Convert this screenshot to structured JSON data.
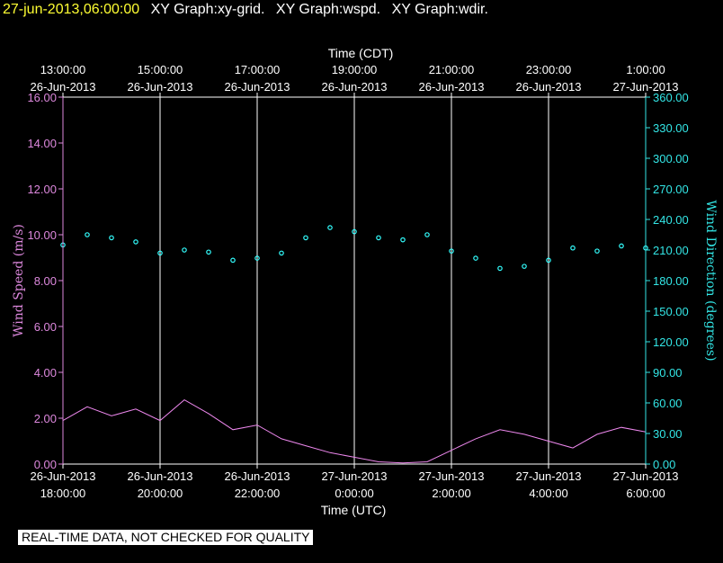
{
  "header": {
    "timestamp": "27-jun-2013,06:00:00",
    "graph_titles": [
      "XY Graph:xy-grid.",
      "XY Graph:wspd.",
      "XY Graph:wdir."
    ]
  },
  "disclaimer": "REAL-TIME DATA, NOT CHECKED FOR QUALITY",
  "colors": {
    "background": "#000000",
    "frame": "#ffffff",
    "left_axis": "#dd88dd",
    "right_axis": "#33e6e6",
    "wind_speed": "#ee88ee",
    "wind_direction": "#33ffff",
    "header_timestamp": "#ffff33"
  },
  "chart_data": {
    "type": "line",
    "top_axis": {
      "label": "Time (CDT)",
      "ticks": [
        {
          "time": "13:00:00",
          "date": "26-Jun-2013"
        },
        {
          "time": "15:00:00",
          "date": "26-Jun-2013"
        },
        {
          "time": "17:00:00",
          "date": "26-Jun-2013"
        },
        {
          "time": "19:00:00",
          "date": "26-Jun-2013"
        },
        {
          "time": "21:00:00",
          "date": "26-Jun-2013"
        },
        {
          "time": "23:00:00",
          "date": "26-Jun-2013"
        },
        {
          "time": "1:00:00",
          "date": "27-Jun-2013"
        }
      ]
    },
    "bottom_axis": {
      "label": "Time (UTC)",
      "ticks": [
        {
          "date": "26-Jun-2013",
          "time": "18:00:00"
        },
        {
          "date": "26-Jun-2013",
          "time": "20:00:00"
        },
        {
          "date": "26-Jun-2013",
          "time": "22:00:00"
        },
        {
          "date": "27-Jun-2013",
          "time": "0:00:00"
        },
        {
          "date": "27-Jun-2013",
          "time": "2:00:00"
        },
        {
          "date": "27-Jun-2013",
          "time": "4:00:00"
        },
        {
          "date": "27-Jun-2013",
          "time": "6:00:00"
        }
      ]
    },
    "left_axis": {
      "label": "Wind Speed (m/s)",
      "ylim": [
        0,
        16
      ],
      "ticks": [
        "0.00",
        "2.00",
        "4.00",
        "6.00",
        "8.00",
        "10.00",
        "12.00",
        "14.00",
        "16.00"
      ]
    },
    "right_axis": {
      "label": "Wind Direction (degrees)",
      "ylim": [
        0,
        360
      ],
      "ticks": [
        "0.00",
        "30.00",
        "60.00",
        "90.00",
        "120.00",
        "150.00",
        "180.00",
        "210.00",
        "240.00",
        "270.00",
        "300.00",
        "330.00",
        "360.00"
      ]
    },
    "grid": "vertical",
    "series": [
      {
        "kind": "line",
        "axis": "left",
        "x_hours_utc": [
          18.0,
          18.5,
          19.0,
          19.5,
          20.0,
          20.5,
          21.0,
          21.5,
          22.0,
          22.5,
          23.0,
          23.5,
          24.0,
          24.5,
          25.0,
          25.5,
          26.0,
          26.5,
          27.0,
          27.5,
          28.0,
          28.5,
          29.0,
          29.5,
          30.0
        ],
        "values": [
          1.9,
          2.5,
          2.1,
          2.4,
          1.9,
          2.8,
          2.2,
          1.5,
          1.7,
          1.1,
          0.8,
          0.5,
          0.3,
          0.1,
          0.05,
          0.1,
          0.6,
          1.1,
          1.5,
          1.3,
          1.0,
          0.7,
          1.3,
          1.6,
          1.4
        ]
      },
      {
        "kind": "scatter",
        "axis": "right",
        "x_hours_utc": [
          18.0,
          18.5,
          19.0,
          19.5,
          20.0,
          20.5,
          21.0,
          21.5,
          22.0,
          22.5,
          23.0,
          23.5,
          24.0,
          24.5,
          25.0,
          25.5,
          26.0,
          26.5,
          27.0,
          27.5,
          28.0,
          28.5,
          29.0,
          29.5,
          30.0
        ],
        "values": [
          215,
          225,
          222,
          218,
          207,
          210,
          208,
          200,
          202,
          207,
          222,
          232,
          228,
          222,
          220,
          225,
          209,
          202,
          192,
          194,
          200,
          212,
          209,
          214,
          212
        ]
      }
    ]
  }
}
